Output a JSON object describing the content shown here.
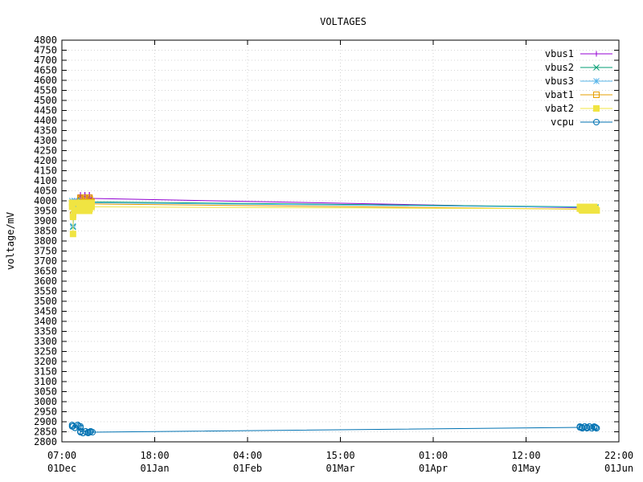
{
  "chart_data": {
    "type": "line",
    "title": "VOLTAGES",
    "xlabel": "",
    "ylabel": "voltage/mV",
    "ylim": [
      2800,
      4800
    ],
    "y_ticks": [
      2800,
      2850,
      2900,
      2950,
      3000,
      3050,
      3100,
      3150,
      3200,
      3250,
      3300,
      3350,
      3400,
      3450,
      3500,
      3550,
      3600,
      3650,
      3700,
      3750,
      3800,
      3850,
      3900,
      3950,
      4000,
      4050,
      4100,
      4150,
      4200,
      4250,
      4300,
      4350,
      4400,
      4450,
      4500,
      4550,
      4600,
      4650,
      4700,
      4750,
      4800
    ],
    "x_axis": "time",
    "xlim": [
      "01Dec 07:00",
      "01Jun 22:00"
    ],
    "x_ticks": [
      {
        "t": 0,
        "line1": "07:00",
        "line2": "01Dec"
      },
      {
        "t": 1,
        "line1": "18:00",
        "line2": "01Jan"
      },
      {
        "t": 2,
        "line1": "04:00",
        "line2": "01Feb"
      },
      {
        "t": 3,
        "line1": "15:00",
        "line2": "01Mar"
      },
      {
        "t": 4,
        "line1": "01:00",
        "line2": "01Apr"
      },
      {
        "t": 5,
        "line1": "12:00",
        "line2": "01May"
      },
      {
        "t": 6,
        "line1": "22:00",
        "line2": "01Jun"
      }
    ],
    "grid": true,
    "legend_position": "top-right",
    "series": [
      {
        "name": "vbus1",
        "color": "#9400d3",
        "marker": "plus",
        "points": [
          [
            0.12,
            3980
          ],
          [
            0.14,
            4000
          ],
          [
            0.2,
            4025
          ],
          [
            0.25,
            4020
          ],
          [
            0.3,
            4015
          ],
          [
            0.32,
            4012
          ],
          [
            5.6,
            3965
          ],
          [
            5.75,
            3962
          ]
        ]
      },
      {
        "name": "vbus2",
        "color": "#009e73",
        "marker": "x",
        "points": [
          [
            0.12,
            3870
          ],
          [
            0.13,
            3960
          ],
          [
            0.15,
            3990
          ],
          [
            0.2,
            4005
          ],
          [
            0.3,
            4000
          ],
          [
            0.32,
            3995
          ],
          [
            5.6,
            3970
          ],
          [
            5.75,
            3968
          ]
        ]
      },
      {
        "name": "vbus3",
        "color": "#56b4e9",
        "marker": "star",
        "points": [
          [
            0.12,
            3875
          ],
          [
            0.13,
            3950
          ],
          [
            0.15,
            3985
          ],
          [
            0.2,
            4000
          ],
          [
            0.3,
            3995
          ],
          [
            0.32,
            3990
          ],
          [
            5.6,
            3968
          ],
          [
            5.75,
            3965
          ]
        ]
      },
      {
        "name": "vbat1",
        "color": "#e69f00",
        "marker": "open-square",
        "points": [
          [
            0.12,
            3930
          ],
          [
            0.15,
            3975
          ],
          [
            0.2,
            4010
          ],
          [
            0.3,
            4008
          ],
          [
            0.32,
            3985
          ],
          [
            5.6,
            3958
          ],
          [
            5.75,
            3955
          ]
        ]
      },
      {
        "name": "vbat2",
        "color": "#f0e442",
        "marker": "filled-square",
        "points": [
          [
            0.12,
            3835
          ],
          [
            0.12,
            3920
          ],
          [
            0.15,
            3970
          ],
          [
            0.2,
            3960
          ],
          [
            0.3,
            3960
          ],
          [
            0.32,
            3970
          ],
          [
            5.6,
            3960
          ],
          [
            5.75,
            3960
          ]
        ]
      },
      {
        "name": "vcpu",
        "color": "#0072b2",
        "marker": "open-circle",
        "points": [
          [
            0.12,
            2878
          ],
          [
            0.18,
            2878
          ],
          [
            0.2,
            2850
          ],
          [
            0.3,
            2848
          ],
          [
            0.33,
            2848
          ],
          [
            5.6,
            2872
          ],
          [
            5.75,
            2872
          ]
        ]
      }
    ],
    "clusters": [
      {
        "series": "vcpu",
        "from": 0.11,
        "to": 0.2,
        "low": 2870,
        "high": 2884
      },
      {
        "series": "vcpu",
        "from": 0.2,
        "to": 0.31,
        "low": 2844,
        "high": 2852
      },
      {
        "series": "vcpu",
        "from": 5.58,
        "to": 5.76,
        "low": 2868,
        "high": 2876
      },
      {
        "series": "vbus3",
        "from": 0.11,
        "to": 0.15,
        "low": 3985,
        "high": 4000
      },
      {
        "series": "vbus1",
        "from": 0.2,
        "to": 0.32,
        "low": 4005,
        "high": 4030
      },
      {
        "series": "vbat1",
        "from": 0.2,
        "to": 0.32,
        "low": 3995,
        "high": 4015
      },
      {
        "series": "vbat2",
        "from": 0.11,
        "to": 0.32,
        "low": 3950,
        "high": 3990
      },
      {
        "series": "vbat2",
        "from": 5.58,
        "to": 5.76,
        "low": 3952,
        "high": 3970
      }
    ]
  }
}
